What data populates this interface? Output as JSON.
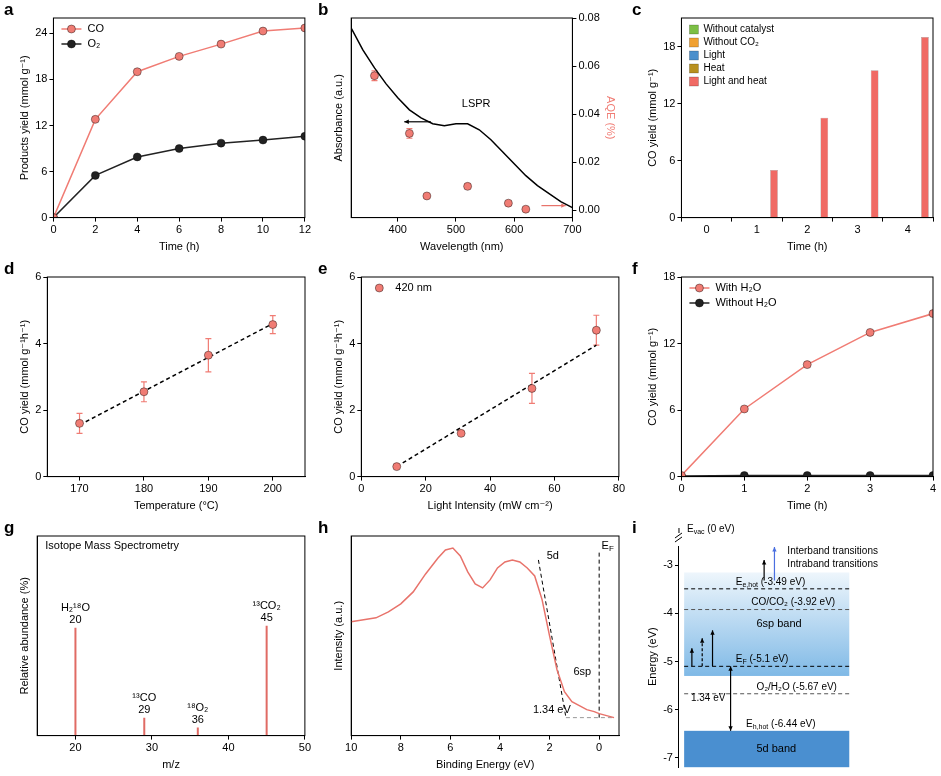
{
  "chart_data": [
    {
      "panel_label": "a",
      "type": "line",
      "x_label": "Time (h)",
      "y_label": "Products yield (mmol g⁻¹)",
      "x": [
        0,
        2,
        4,
        6,
        8,
        10,
        12
      ],
      "xlim": [
        0,
        12
      ],
      "xticks": [
        0,
        2,
        4,
        6,
        8,
        10,
        12
      ],
      "ylim": [
        0,
        26
      ],
      "yticks": [
        0,
        6,
        12,
        18,
        24
      ],
      "legend": "top-left",
      "series": [
        {
          "name": "CO",
          "color": "#f07c74",
          "marker": "circle",
          "values": [
            0,
            12.8,
            19,
            21,
            22.6,
            24.3,
            24.7
          ]
        },
        {
          "name": "O₂",
          "color": "#222222",
          "marker": "circle",
          "values": [
            0,
            5.5,
            7.9,
            9,
            9.7,
            10.1,
            10.6
          ]
        }
      ]
    },
    {
      "panel_label": "b",
      "type": "line",
      "x_label": "Wavelength (nm)",
      "y_label": "Absorbance (a.u.)",
      "y2_label": "AQE (%)",
      "xlim": [
        320,
        700
      ],
      "xticks": [
        400,
        500,
        600,
        700
      ],
      "ylim": [
        0,
        1
      ],
      "y2lim": [
        -0.003,
        0.08
      ],
      "y2ticks": [
        {
          "value": 0,
          "label": "0.00"
        },
        0.02,
        0.04,
        0.06,
        0.08
      ],
      "annotations": [
        "LSPR"
      ],
      "series": [
        {
          "color": "#000000",
          "x": [
            320,
            340,
            360,
            380,
            400,
            420,
            440,
            460,
            480,
            500,
            520,
            540,
            560,
            580,
            600,
            620,
            640,
            660,
            680,
            700
          ],
          "values": [
            0.95,
            0.84,
            0.75,
            0.67,
            0.6,
            0.54,
            0.5,
            0.47,
            0.46,
            0.47,
            0.47,
            0.44,
            0.39,
            0.33,
            0.27,
            0.21,
            0.16,
            0.12,
            0.08,
            0.05
          ]
        },
        {
          "type": "scatter",
          "axis": "y2",
          "color": "#f07c74",
          "marker": "circle",
          "x": [
            360,
            420,
            450,
            520,
            590,
            620
          ],
          "values": [
            0.056,
            0.032,
            0.006,
            0.01,
            0.003,
            0.0005
          ],
          "errors": [
            0.002,
            0.002,
            0.0008,
            0.001,
            0.0008,
            0.0005
          ]
        }
      ]
    },
    {
      "panel_label": "c",
      "type": "bar",
      "x_label": "Time (h)",
      "y_label": "CO yield (mmol g⁻¹)",
      "categories": [
        0,
        1,
        2,
        3,
        4
      ],
      "ylim": [
        0,
        21
      ],
      "yticks": [
        0,
        6,
        12,
        18
      ],
      "legend": "top-left",
      "series": [
        {
          "name": "Without catalyst",
          "color": "#7cbf45",
          "values": [
            0,
            0,
            0,
            0,
            0
          ]
        },
        {
          "name": "Without CO₂",
          "color": "#f0a030",
          "values": [
            0,
            0,
            0,
            0,
            0
          ]
        },
        {
          "name": "Light",
          "color": "#4a8fcc",
          "values": [
            0,
            0.05,
            0.05,
            0.05,
            0.05
          ]
        },
        {
          "name": "Heat",
          "color": "#b8901e",
          "values": [
            0,
            0,
            0,
            0,
            0
          ]
        },
        {
          "name": "Light and heat",
          "color": "#f06a64",
          "values": [
            0,
            5,
            10.5,
            15.5,
            19
          ]
        }
      ]
    },
    {
      "panel_label": "d",
      "type": "scatter",
      "x_label": "Temperature (°C)",
      "y_label": "CO yield (mmol g⁻¹h⁻¹)",
      "xlim": [
        165,
        205
      ],
      "xticks": [
        170,
        180,
        190,
        200
      ],
      "ylim": [
        0,
        6
      ],
      "yticks": [
        0,
        2,
        4,
        6
      ],
      "series": [
        {
          "color": "#f07c74",
          "marker": "circle",
          "x": [
            170,
            180,
            190,
            200
          ],
          "values": [
            1.6,
            2.55,
            3.65,
            4.57
          ],
          "errors": [
            0.3,
            0.3,
            0.5,
            0.27
          ]
        },
        {
          "color": "#000000",
          "line_style": "dashed",
          "x": [
            170,
            200
          ],
          "values": [
            1.55,
            4.6
          ]
        }
      ]
    },
    {
      "panel_label": "e",
      "type": "scatter",
      "x_label": "Light Intensity (mW cm⁻²)",
      "y_label": "CO yield (mmol g⁻¹h⁻¹)",
      "xlim": [
        0,
        80
      ],
      "xticks": [
        0,
        20,
        40,
        60,
        80
      ],
      "ylim": [
        0,
        6
      ],
      "yticks": [
        0,
        2,
        4,
        6
      ],
      "legend": "top-left",
      "series": [
        {
          "name": "420 nm",
          "color": "#f07c74",
          "marker": "circle",
          "x": [
            11,
            31,
            53,
            73
          ],
          "values": [
            0.3,
            1.3,
            2.65,
            4.4
          ],
          "errors": [
            0.05,
            0.05,
            0.45,
            0.45
          ]
        },
        {
          "color": "#000000",
          "line_style": "dashed",
          "x": [
            11,
            73
          ],
          "values": [
            0.3,
            3.95
          ]
        }
      ]
    },
    {
      "panel_label": "f",
      "type": "line",
      "x_label": "Time (h)",
      "y_label": "CO yield (mmol g⁻¹)",
      "x": [
        0,
        1,
        2,
        3,
        4
      ],
      "xlim": [
        0,
        4
      ],
      "xticks": [
        0,
        1,
        2,
        3,
        4
      ],
      "ylim": [
        0,
        18
      ],
      "yticks": [
        0,
        6,
        12,
        18
      ],
      "legend": "top-left",
      "series": [
        {
          "name": "With H₂O",
          "color": "#f07c74",
          "marker": "circle",
          "values": [
            0.1,
            6.1,
            10.1,
            13,
            14.7
          ]
        },
        {
          "name": "Without H₂O",
          "color": "#222222",
          "marker": "circle",
          "values": [
            0.05,
            0.1,
            0.1,
            0.1,
            0.1
          ]
        }
      ]
    },
    {
      "panel_label": "g",
      "type": "stem",
      "title": "Isotope Mass Spectrometry",
      "x_label": "m/z",
      "y_label": "Relative abundance (%)",
      "xlim": [
        15,
        50
      ],
      "xticks": [
        20,
        30,
        40,
        50
      ],
      "ylim": [
        0,
        100
      ],
      "tick_labels": "x",
      "color": "#e06b64",
      "x": [
        20,
        29,
        36,
        45
      ],
      "values": [
        54,
        9,
        4,
        55
      ],
      "labels": [
        "H₂¹⁸O",
        "¹³CO",
        "¹⁸O₂",
        "¹³CO₂"
      ]
    },
    {
      "panel_label": "h",
      "type": "line",
      "x_label": "Binding Energy (eV)",
      "y_label": "Intensity (a.u.)",
      "xlim": [
        10,
        -0.8
      ],
      "xticks": [
        10,
        8,
        6,
        4,
        2,
        0
      ],
      "ylim": [
        0,
        1
      ],
      "tick_labels": "x",
      "series": [
        {
          "color": "#e8736b",
          "x": [
            10,
            9.5,
            9,
            8.5,
            8,
            7.5,
            7,
            6.5,
            6.2,
            5.9,
            5.6,
            5.3,
            5,
            4.7,
            4.4,
            4.1,
            3.8,
            3.5,
            3.2,
            2.9,
            2.6,
            2.3,
            2,
            1.7,
            1.4,
            1.1,
            0.8,
            0.5,
            0.2,
            0,
            -0.3,
            -0.6
          ],
          "values": [
            0.57,
            0.58,
            0.59,
            0.62,
            0.66,
            0.72,
            0.81,
            0.89,
            0.93,
            0.94,
            0.9,
            0.82,
            0.76,
            0.74,
            0.78,
            0.84,
            0.87,
            0.88,
            0.87,
            0.84,
            0.8,
            0.68,
            0.5,
            0.33,
            0.22,
            0.17,
            0.15,
            0.13,
            0.12,
            0.11,
            0.1,
            0.09
          ]
        }
      ],
      "guides": [
        {
          "color": "#000000",
          "line_style": "dashed",
          "x": [
            2.45,
            1.34
          ],
          "values": [
            0.88,
            0.09
          ]
        },
        {
          "color": "#999999",
          "line_style": "dashed",
          "x": [
            1.34,
            -0.6
          ],
          "values": [
            0.09,
            0.09
          ]
        },
        {
          "color": "#000000",
          "line_style": "dashed",
          "x": [
            0,
            0
          ],
          "values": [
            0.09,
            0.93
          ]
        }
      ],
      "annotations": [
        "5d",
        "6sp",
        {
          "text": "E",
          "subscript": "F"
        },
        "1.34 eV"
      ]
    },
    {
      "panel_label": "i",
      "type": "energy_levels",
      "y_label": "Energy (eV)",
      "ylim": [
        -7.2,
        -2.6
      ],
      "yticks": [
        -7,
        -6,
        -5,
        -4,
        -3
      ],
      "top_label": {
        "symbol": "E",
        "subscript": "vac",
        "label": "(0 eV)"
      },
      "levels": [
        {
          "symbol": "E",
          "subscript": "e,hot",
          "label": "(-3.49 eV)",
          "value": -3.49,
          "color": "#000000",
          "line_style": "dashed"
        },
        {
          "symbol": "CO/CO₂",
          "label": "(-3.92 eV)",
          "value": -3.92,
          "color": "#555555",
          "line_style": "dashed"
        },
        {
          "symbol": "E",
          "subscript": "F",
          "label": "(-5.1 eV)",
          "value": -5.1,
          "color": "#000000",
          "line_style": "dashed"
        },
        {
          "symbol": "O₂/H₂O",
          "label": "(-5.67 eV)",
          "value": -5.67,
          "color": "#555555",
          "line_style": "dashed"
        },
        {
          "symbol": "E",
          "subscript": "h,hot",
          "label": "(-6.44 eV)",
          "value": -6.44,
          "color": "#000000"
        }
      ],
      "bands": [
        {
          "label": "5d band",
          "from": -7.2,
          "to": -6.44
        },
        {
          "label": "6sp band",
          "from": -5.3,
          "to": -3.15
        }
      ],
      "gap_label": "1.34 eV",
      "annotations": [
        "Interband transitions",
        "Intraband transitions"
      ]
    }
  ]
}
